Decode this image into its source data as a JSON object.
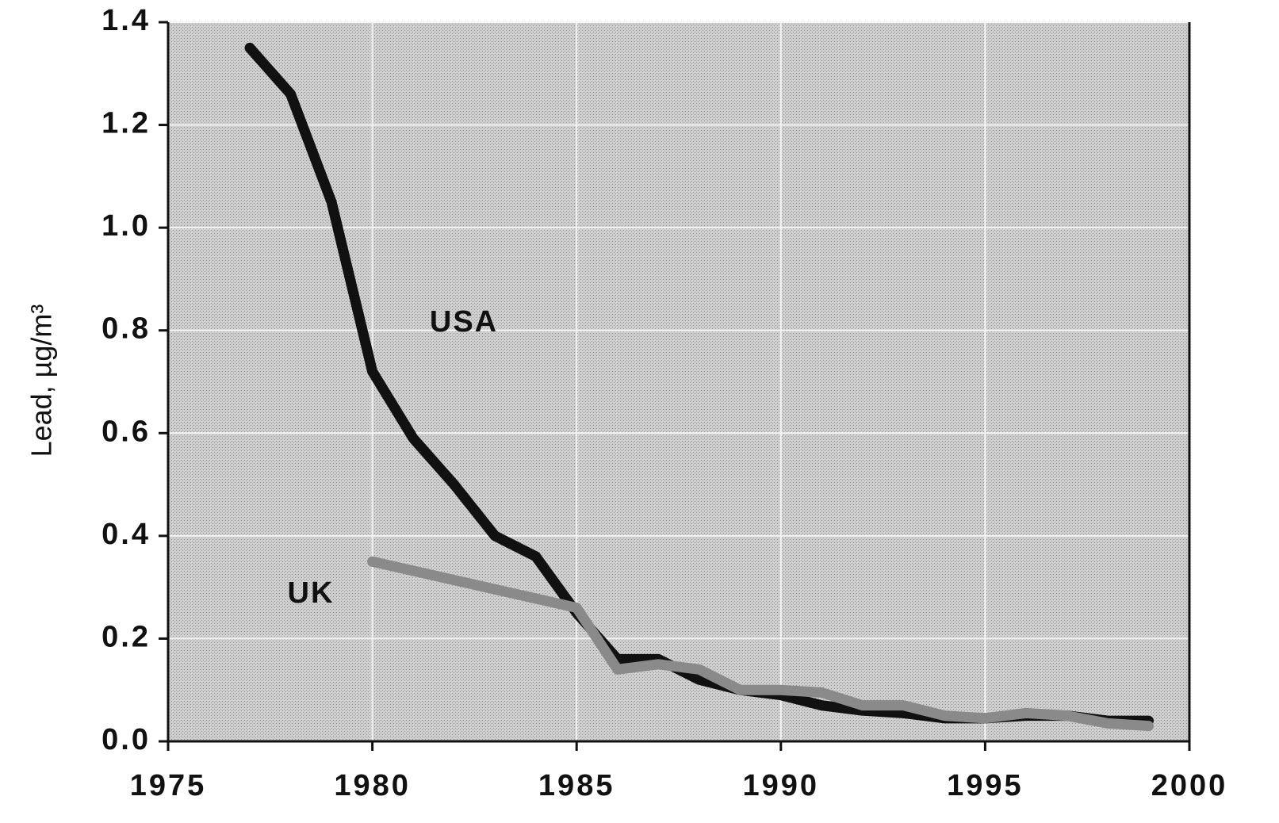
{
  "chart_data": {
    "type": "line",
    "ylabel": "Lead, µg/m³",
    "annotations": [
      "USA",
      "UK"
    ],
    "xlim": [
      1975,
      2000
    ],
    "xticks": [
      1975,
      1980,
      1985,
      1990,
      1995,
      2000
    ],
    "ylim": [
      0,
      1.4
    ],
    "yticks": [
      {
        "value": 0,
        "label": "0.0"
      },
      0.2,
      0.4,
      0.6,
      0.8,
      {
        "value": 1,
        "label": "1.0"
      },
      1.2,
      1.4
    ],
    "grid": true,
    "series": [
      {
        "name": "USA",
        "color": "#111111",
        "x": [
          1977,
          1978,
          1979,
          1980,
          1981,
          1982,
          1983,
          1984,
          1985,
          1986,
          1987,
          1988,
          1989,
          1990,
          1991,
          1992,
          1993,
          1994,
          1995,
          1996,
          1997,
          1998,
          1999
        ],
        "values": [
          1.35,
          1.26,
          1.05,
          0.72,
          0.59,
          0.5,
          0.4,
          0.36,
          0.25,
          0.16,
          0.16,
          0.12,
          0.1,
          0.09,
          0.07,
          0.06,
          0.055,
          0.045,
          0.045,
          0.05,
          0.05,
          0.04,
          0.04
        ]
      },
      {
        "name": "UK",
        "color": "#8a8a8a",
        "x": [
          1980,
          1985,
          1986,
          1987,
          1988,
          1989,
          1990,
          1991,
          1992,
          1993,
          1994,
          1995,
          1996,
          1997,
          1998,
          1999
        ],
        "values": [
          0.35,
          0.26,
          0.14,
          0.15,
          0.14,
          0.1,
          0.1,
          0.095,
          0.07,
          0.07,
          0.05,
          0.045,
          0.055,
          0.05,
          0.035,
          0.03
        ]
      }
    ]
  }
}
